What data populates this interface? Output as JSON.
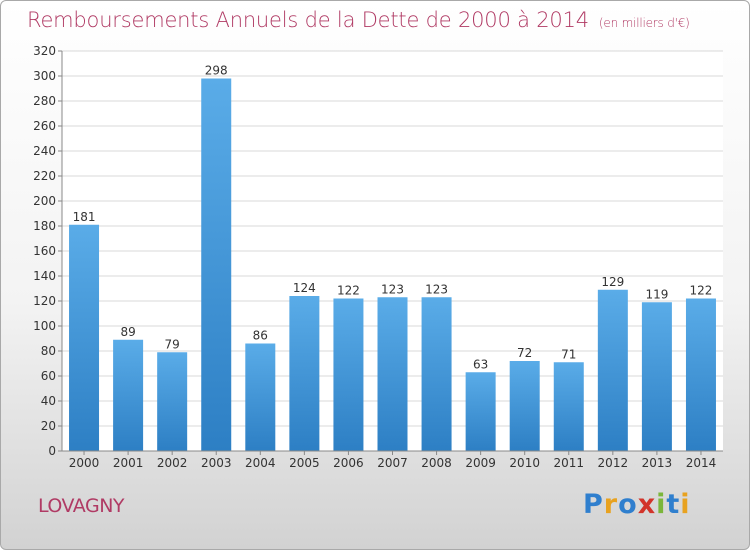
{
  "header": {
    "title": "Remboursements Annuels de la Dette de 2000 à 2014",
    "subtitle": "(en milliers d'€)"
  },
  "footer": {
    "commune": "LOVAGNY",
    "logo": {
      "text": "Proxiti",
      "letters": [
        {
          "char": "P",
          "color": "#2f7fce"
        },
        {
          "char": "r",
          "color": "#e8a21f"
        },
        {
          "char": "o",
          "color": "#2f7fce"
        },
        {
          "char": "x",
          "color": "#d2342a"
        },
        {
          "char": "i",
          "color": "#7bb63b"
        },
        {
          "char": "t",
          "color": "#2f7fce"
        },
        {
          "char": "i",
          "color": "#e8a21f"
        }
      ]
    }
  },
  "colors": {
    "bar_light": "#5aace8",
    "bar_dark": "#2d7fc4",
    "grid": "#d8d8d8",
    "axis_text": "#333333",
    "title": "#b03a64"
  },
  "chart_data": {
    "type": "bar",
    "title": "Remboursements Annuels de la Dette de 2000 à 2014",
    "categories": [
      "2000",
      "2001",
      "2002",
      "2003",
      "2004",
      "2005",
      "2006",
      "2007",
      "2008",
      "2009",
      "2010",
      "2011",
      "2012",
      "2013",
      "2014"
    ],
    "values": [
      181,
      89,
      79,
      298,
      86,
      124,
      122,
      123,
      123,
      63,
      72,
      71,
      129,
      119,
      122
    ],
    "ylim": [
      0,
      320
    ],
    "yticks": [
      0,
      20,
      40,
      60,
      80,
      100,
      120,
      140,
      160,
      180,
      200,
      220,
      240,
      260,
      280,
      300,
      320
    ],
    "grid": true,
    "xlabel": "",
    "ylabel": ""
  }
}
